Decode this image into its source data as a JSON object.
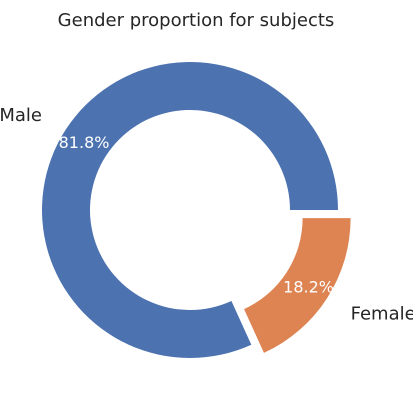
{
  "chart_data": {
    "type": "pie",
    "title": "Gender proportion for subjects",
    "categories": [
      "Male",
      "Female"
    ],
    "values": [
      81.8,
      18.2
    ],
    "value_labels": [
      "81.8%",
      "18.2%"
    ],
    "colors": [
      "#4C72B0",
      "#DD8452"
    ],
    "donut": true,
    "exploded": [
      false,
      true
    ],
    "legend": "none"
  }
}
